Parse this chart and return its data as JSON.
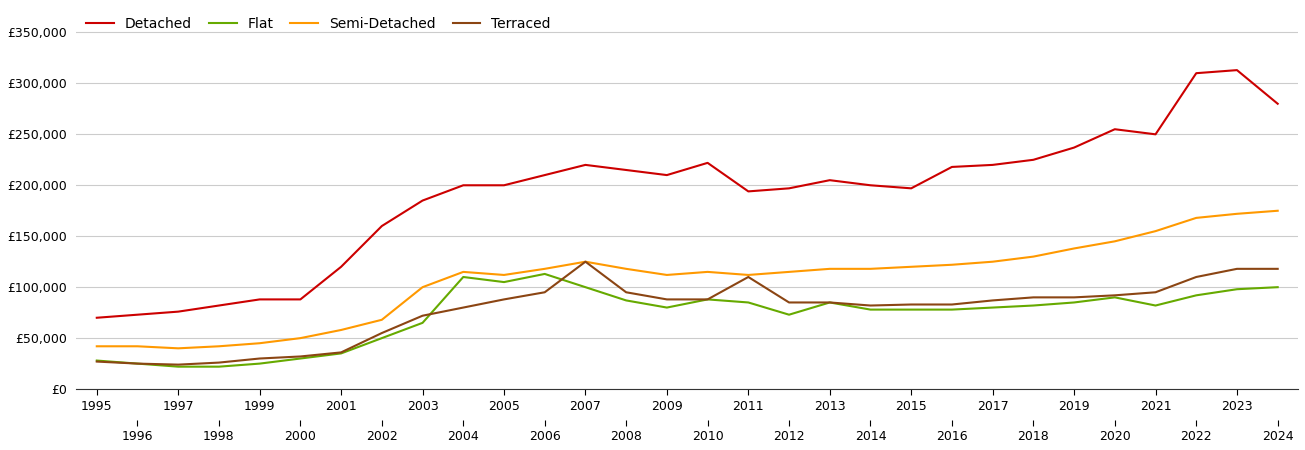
{
  "years": [
    1995,
    1996,
    1997,
    1998,
    1999,
    2000,
    2001,
    2002,
    2003,
    2004,
    2005,
    2006,
    2007,
    2008,
    2009,
    2010,
    2011,
    2012,
    2013,
    2014,
    2015,
    2016,
    2017,
    2018,
    2019,
    2020,
    2021,
    2022,
    2023,
    2024
  ],
  "detached": [
    70000,
    73000,
    76000,
    82000,
    88000,
    88000,
    120000,
    160000,
    185000,
    200000,
    200000,
    210000,
    220000,
    215000,
    210000,
    222000,
    194000,
    197000,
    205000,
    200000,
    197000,
    218000,
    220000,
    225000,
    237000,
    255000,
    250000,
    310000,
    313000,
    280000
  ],
  "flat": [
    28000,
    25000,
    22000,
    22000,
    25000,
    30000,
    35000,
    50000,
    65000,
    110000,
    105000,
    113000,
    100000,
    87000,
    80000,
    88000,
    85000,
    73000,
    85000,
    78000,
    78000,
    78000,
    80000,
    82000,
    85000,
    90000,
    82000,
    92000,
    98000,
    100000
  ],
  "semi_detached": [
    42000,
    42000,
    40000,
    42000,
    45000,
    50000,
    58000,
    68000,
    100000,
    115000,
    112000,
    118000,
    125000,
    118000,
    112000,
    115000,
    112000,
    115000,
    118000,
    118000,
    120000,
    122000,
    125000,
    130000,
    138000,
    145000,
    155000,
    168000,
    172000,
    175000
  ],
  "terraced": [
    27000,
    25000,
    24000,
    26000,
    30000,
    32000,
    36000,
    55000,
    72000,
    80000,
    88000,
    95000,
    125000,
    95000,
    88000,
    88000,
    110000,
    85000,
    85000,
    82000,
    83000,
    83000,
    87000,
    90000,
    90000,
    92000,
    95000,
    110000,
    118000,
    118000
  ],
  "colors": {
    "detached": "#cc0000",
    "flat": "#66aa00",
    "semi_detached": "#ff9900",
    "terraced": "#8b4513"
  },
  "legend_labels": [
    "Detached",
    "Flat",
    "Semi-Detached",
    "Terraced"
  ],
  "ylim": [
    0,
    375000
  ],
  "yticks": [
    0,
    50000,
    100000,
    150000,
    200000,
    250000,
    300000,
    350000
  ],
  "xlim": [
    1994.5,
    2024.5
  ],
  "background_color": "#ffffff",
  "grid_color": "#cccccc"
}
